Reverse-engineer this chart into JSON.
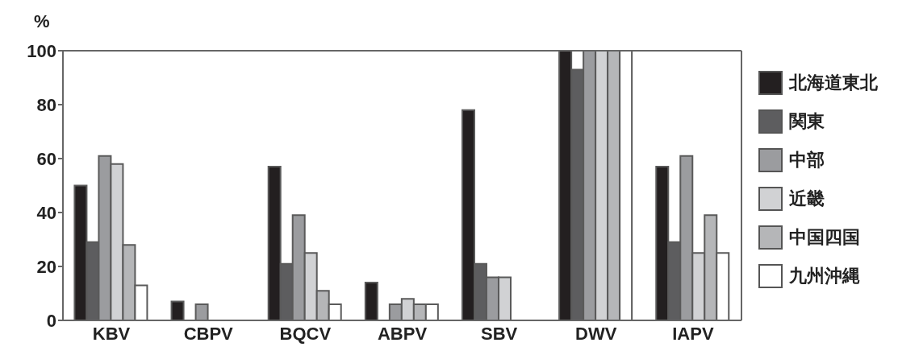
{
  "chart_data": {
    "type": "bar",
    "ylabel": "%",
    "categories": [
      "KBV",
      "CBPV",
      "BQCV",
      "ABPV",
      "SBV",
      "DWV",
      "IAPV"
    ],
    "series": [
      {
        "name": "北海道東北",
        "color": "#231f20",
        "values": [
          50,
          7,
          57,
          14,
          78,
          100,
          57
        ]
      },
      {
        "name": "関東",
        "color": "#5d5d5f",
        "values": [
          29,
          0,
          21,
          0,
          21,
          93,
          29
        ]
      },
      {
        "name": "中部",
        "color": "#9b9c9f",
        "values": [
          61,
          6,
          39,
          6,
          16,
          100,
          61
        ]
      },
      {
        "name": "近畿",
        "color": "#d1d2d4",
        "values": [
          58,
          0,
          25,
          8,
          16,
          100,
          25
        ]
      },
      {
        "name": "中国四国",
        "color": "#b5b6b8",
        "values": [
          28,
          0,
          11,
          6,
          0,
          100,
          39
        ]
      },
      {
        "name": "九州沖縄",
        "color": "#ffffff",
        "values": [
          13,
          0,
          6,
          6,
          0,
          100,
          25
        ]
      }
    ],
    "ylim": [
      0,
      100
    ],
    "yticks": [
      0,
      20,
      40,
      60,
      80,
      100
    ],
    "legend": "right"
  }
}
